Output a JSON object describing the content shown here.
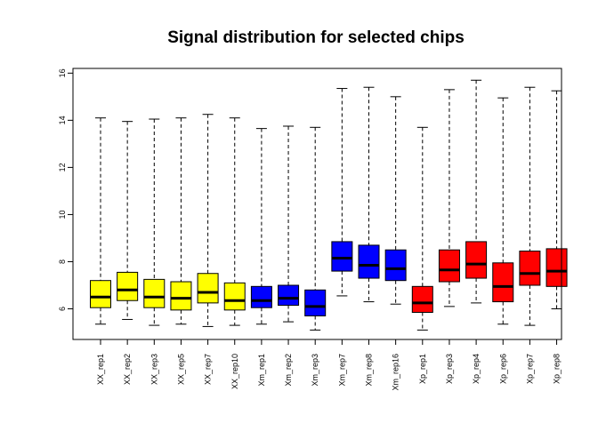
{
  "chart_data": {
    "type": "boxplot",
    "title": "Signal distribution for selected chips",
    "xlabel": "",
    "ylabel": "",
    "ylim": [
      4.7,
      16.2
    ],
    "yticks": [
      6,
      8,
      10,
      12,
      14,
      16
    ],
    "grid": false,
    "legend": "none",
    "categories": [
      "XX_rep1",
      "XX_rep2",
      "XX_rep3",
      "XX_rep5",
      "XX_rep7",
      "XX_rep10",
      "Xm_rep1",
      "Xm_rep2",
      "Xm_rep3",
      "Xm_rep7",
      "Xm_rep8",
      "Xm_rep16",
      "Xp_rep1",
      "Xp_rep3",
      "Xp_rep4",
      "Xp_rep6",
      "Xp_rep7",
      "Xp_rep8"
    ],
    "colors": [
      "#ffff00",
      "#ffff00",
      "#ffff00",
      "#ffff00",
      "#ffff00",
      "#ffff00",
      "#0000ff",
      "#0000ff",
      "#0000ff",
      "#0000ff",
      "#0000ff",
      "#0000ff",
      "#ff0000",
      "#ff0000",
      "#ff0000",
      "#ff0000",
      "#ff0000",
      "#ff0000"
    ],
    "boxes": [
      {
        "min": 5.35,
        "q1": 6.05,
        "median": 6.5,
        "q3": 7.2,
        "max": 14.1
      },
      {
        "min": 5.55,
        "q1": 6.35,
        "median": 6.8,
        "q3": 7.55,
        "max": 13.95
      },
      {
        "min": 5.3,
        "q1": 6.05,
        "median": 6.5,
        "q3": 7.25,
        "max": 14.05
      },
      {
        "min": 5.35,
        "q1": 5.95,
        "median": 6.45,
        "q3": 7.15,
        "max": 14.1
      },
      {
        "min": 5.25,
        "q1": 6.25,
        "median": 6.7,
        "q3": 7.5,
        "max": 14.25
      },
      {
        "min": 5.3,
        "q1": 5.95,
        "median": 6.35,
        "q3": 7.1,
        "max": 14.1
      },
      {
        "min": 5.35,
        "q1": 6.05,
        "median": 6.35,
        "q3": 6.95,
        "max": 13.65
      },
      {
        "min": 5.45,
        "q1": 6.15,
        "median": 6.45,
        "q3": 7.0,
        "max": 13.75
      },
      {
        "min": 5.1,
        "q1": 5.7,
        "median": 6.1,
        "q3": 6.8,
        "max": 13.7
      },
      {
        "min": 6.55,
        "q1": 7.6,
        "median": 8.15,
        "q3": 8.85,
        "max": 15.35
      },
      {
        "min": 6.3,
        "q1": 7.3,
        "median": 7.85,
        "q3": 8.7,
        "max": 15.4
      },
      {
        "min": 6.2,
        "q1": 7.2,
        "median": 7.7,
        "q3": 8.5,
        "max": 15.0
      },
      {
        "min": 5.1,
        "q1": 5.85,
        "median": 6.25,
        "q3": 6.95,
        "max": 13.7
      },
      {
        "min": 6.1,
        "q1": 7.15,
        "median": 7.65,
        "q3": 8.5,
        "max": 15.3
      },
      {
        "min": 6.25,
        "q1": 7.3,
        "median": 7.9,
        "q3": 8.85,
        "max": 15.7
      },
      {
        "min": 5.35,
        "q1": 6.3,
        "median": 6.95,
        "q3": 7.95,
        "max": 14.95
      },
      {
        "min": 5.3,
        "q1": 7.0,
        "median": 7.5,
        "q3": 8.45,
        "max": 15.4
      },
      {
        "min": 6.0,
        "q1": 6.95,
        "median": 7.6,
        "q3": 8.55,
        "max": 15.25
      }
    ]
  }
}
